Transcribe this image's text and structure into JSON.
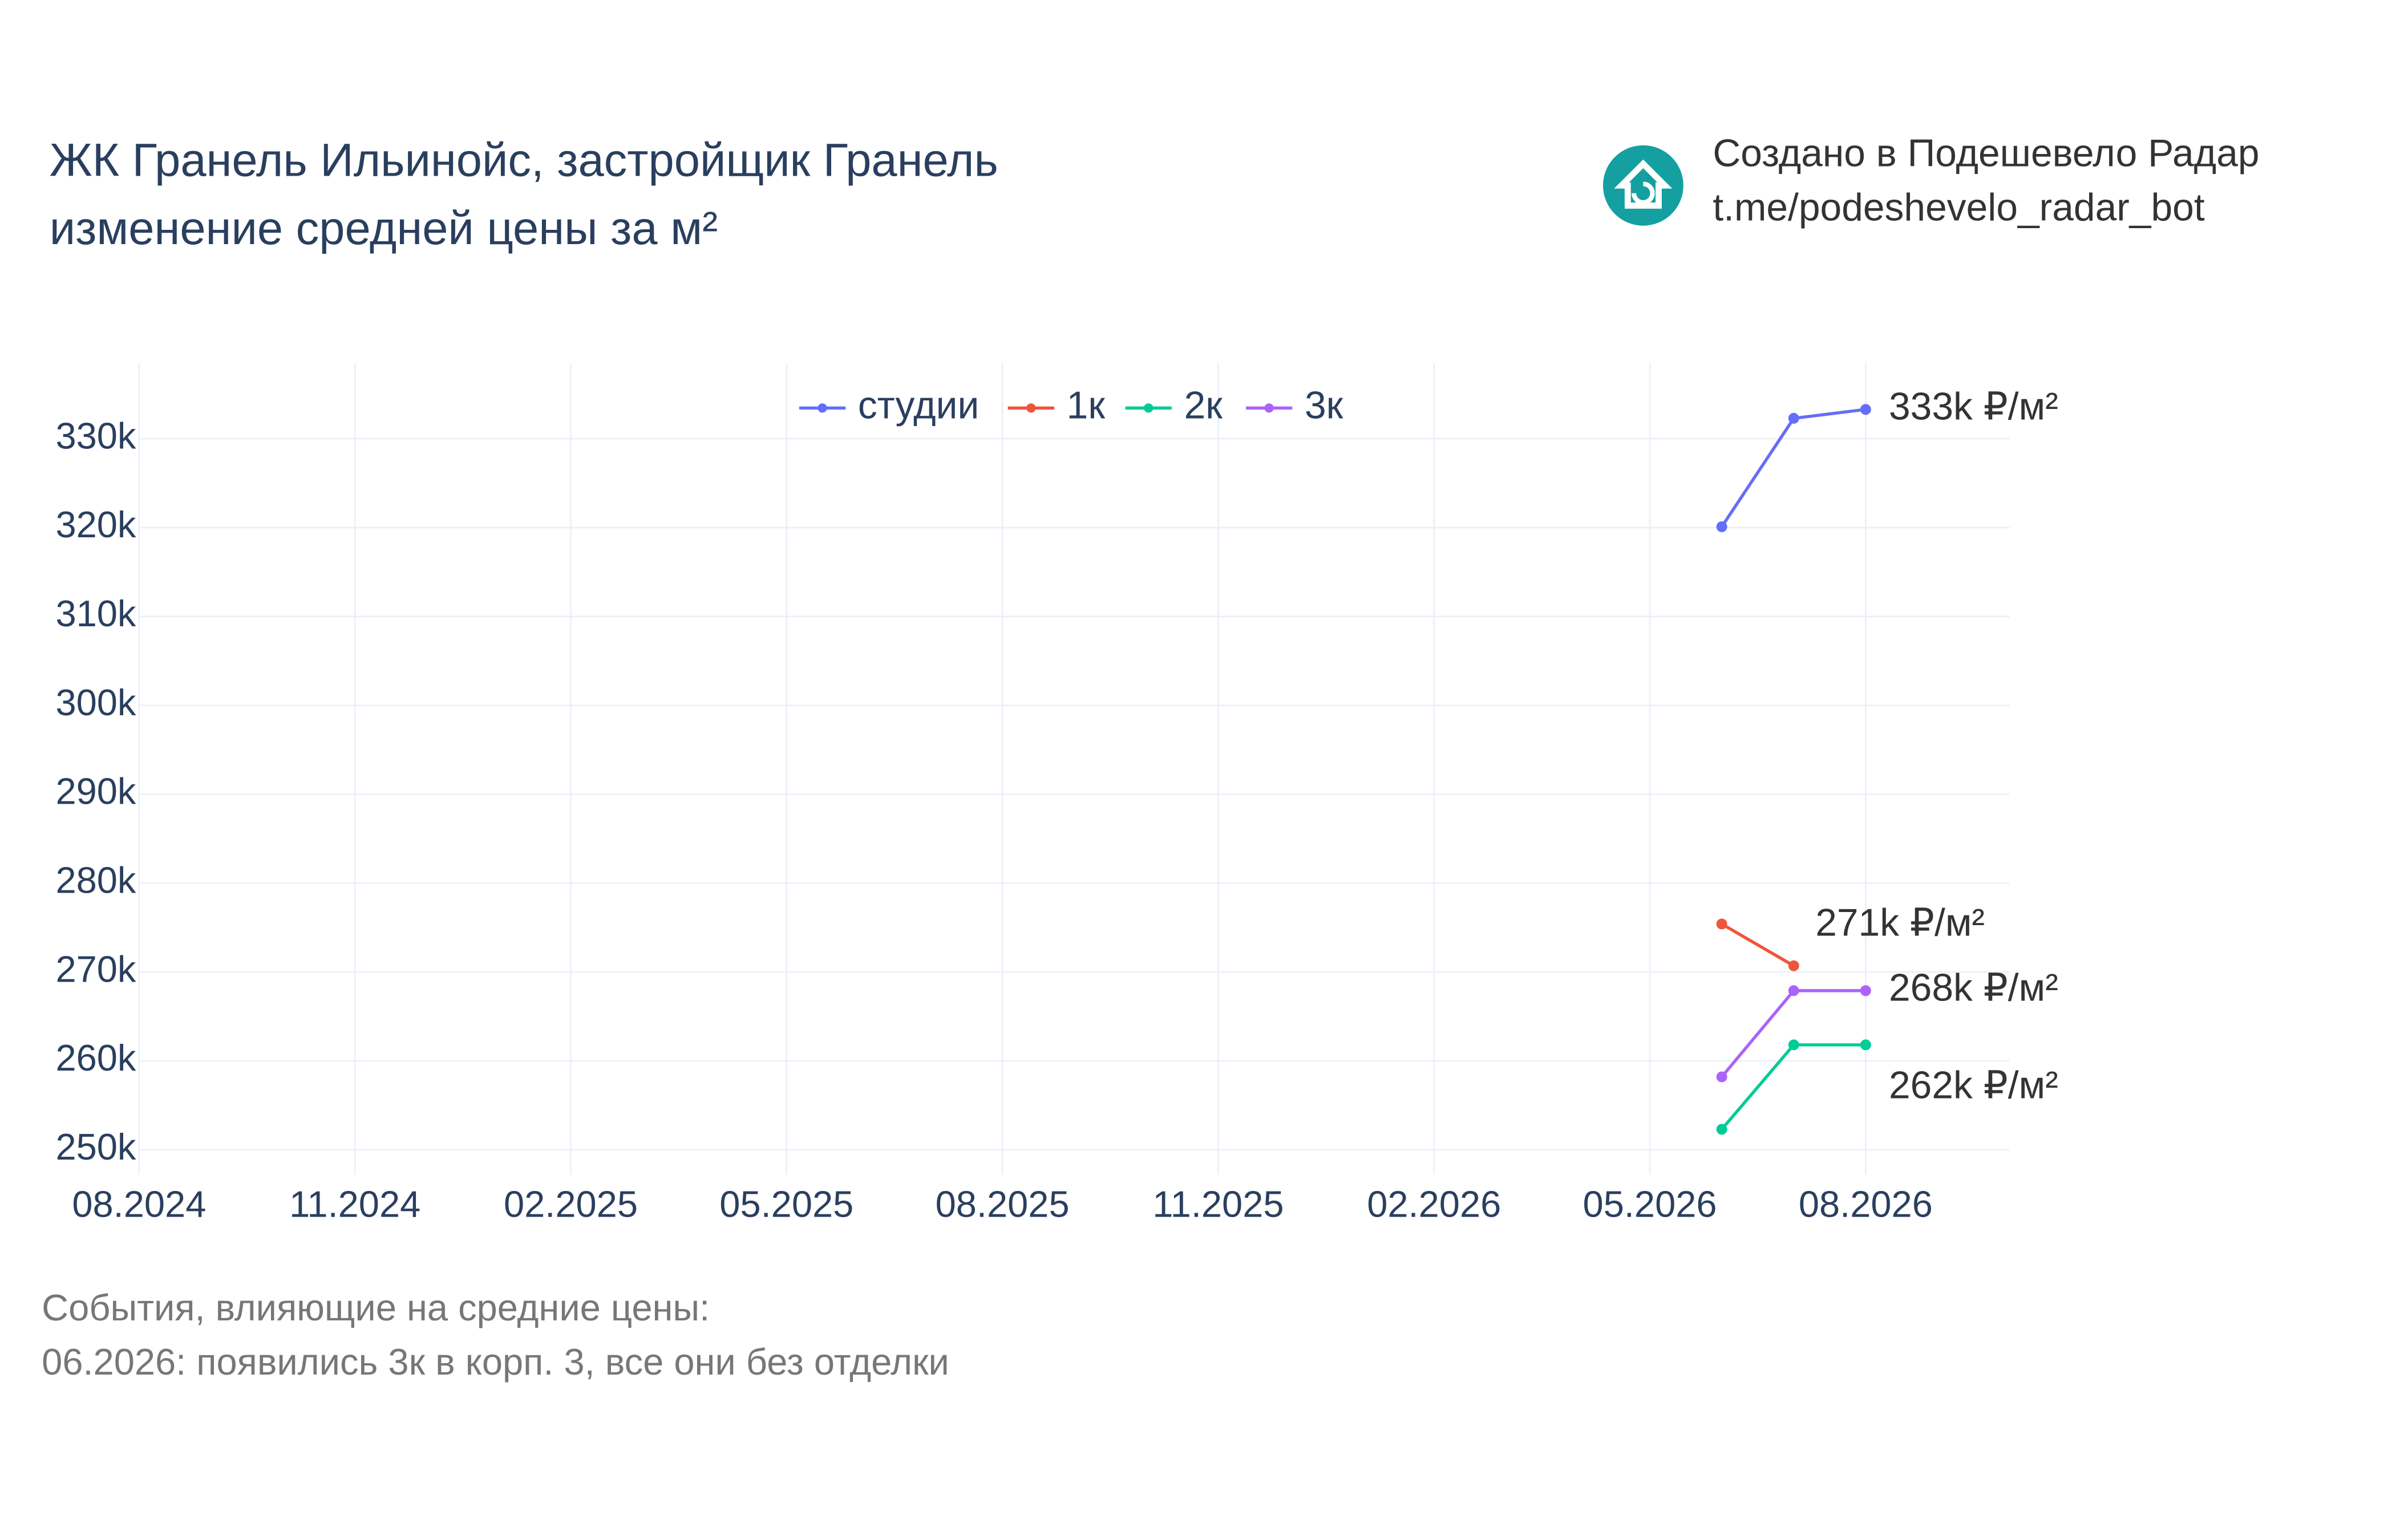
{
  "chart_data": {
    "type": "line",
    "title": [
      "ЖК Гранель Ильинойс, застройщик Гранель",
      "изменение средней цены за м²"
    ],
    "credit": [
      "Создано в Подешевело Радар",
      "t.me/podeshevelo_radar_bot"
    ],
    "notes": [
      "События, влияющие на средние цены:",
      "06.2026: появились 3к в корп. 3, все они без отделки"
    ],
    "x": [
      "06.2026",
      "07.2026",
      "08.2026"
    ],
    "xlim": [
      "08.2024",
      "10.2026"
    ],
    "xticks": [
      "08.2024",
      "11.2024",
      "02.2025",
      "05.2025",
      "08.2025",
      "11.2025",
      "02.2026",
      "05.2026",
      "08.2026"
    ],
    "ylim": [
      247200,
      338500
    ],
    "yticks": [
      {
        "value": 250000,
        "label": "250k"
      },
      {
        "value": 260000,
        "label": "260k"
      },
      {
        "value": 270000,
        "label": "270k"
      },
      {
        "value": 280000,
        "label": "280k"
      },
      {
        "value": 290000,
        "label": "290k"
      },
      {
        "value": 300000,
        "label": "300k"
      },
      {
        "value": 310000,
        "label": "310k"
      },
      {
        "value": 320000,
        "label": "320k"
      },
      {
        "value": 330000,
        "label": "330k"
      }
    ],
    "grid": true,
    "legend": "top",
    "series": [
      {
        "name": "студии",
        "color": "#636efa",
        "values": [
          320100,
          332300,
          333300
        ],
        "end_label": "333k ₽/м²"
      },
      {
        "name": "1к",
        "color": "#ef553b",
        "values": [
          275400,
          270700,
          null
        ],
        "end_label": "271k ₽/м²"
      },
      {
        "name": "2к",
        "color": "#00cc96",
        "values": [
          252300,
          261800,
          261800
        ],
        "end_label": "262k ₽/м²"
      },
      {
        "name": "3к",
        "color": "#ab63fa",
        "values": [
          258200,
          267900,
          267900
        ],
        "end_label": "268k ₽/м²"
      }
    ]
  }
}
